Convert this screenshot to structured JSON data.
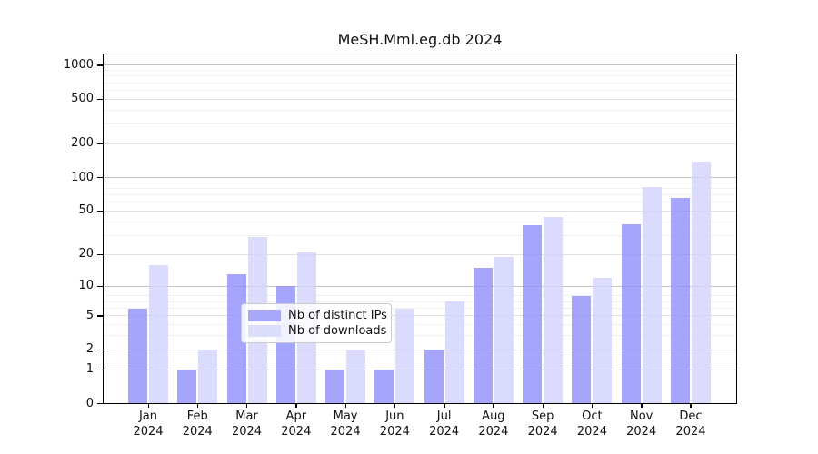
{
  "chart_data": {
    "type": "bar",
    "title": "MeSH.Mml.eg.db 2024",
    "xlabel": "",
    "ylabel": "",
    "x_sublabel": "2024",
    "categories": [
      "Jan",
      "Feb",
      "Mar",
      "Apr",
      "May",
      "Jun",
      "Jul",
      "Aug",
      "Sep",
      "Oct",
      "Nov",
      "Dec"
    ],
    "series": [
      {
        "name": "Nb of distinct IPs",
        "color": "rgba(145,145,250,0.82)",
        "solid_color": "#a8a8fa",
        "values": [
          6,
          1,
          13,
          10,
          1,
          1,
          2,
          15,
          37,
          8,
          38,
          66
        ]
      },
      {
        "name": "Nb of downloads",
        "color": "rgba(211,211,252,0.82)",
        "solid_color": "#dcdcfb",
        "values": [
          16,
          2,
          29,
          21,
          2,
          6,
          7,
          19,
          44,
          12,
          83,
          140
        ]
      }
    ],
    "y_axis": {
      "scale": "log10(1+x)",
      "ticks": [
        0,
        1,
        2,
        5,
        10,
        20,
        50,
        100,
        200,
        500,
        1000
      ],
      "ylim": [
        0,
        1250
      ],
      "grid_major": [
        1,
        10,
        100,
        1000
      ],
      "grid_minor_labeled": [
        2,
        5,
        20,
        50,
        200,
        500
      ],
      "grid_minor": [
        3,
        4,
        6,
        7,
        8,
        9,
        30,
        40,
        60,
        70,
        80,
        90,
        300,
        400,
        600,
        700,
        800,
        900
      ]
    },
    "legend_position": "inside-bottom-center",
    "colors": {
      "grid_major": "#c3c3c7",
      "grid_minor_labeled": "#e2e2e6",
      "grid_minor": "#f1f1f4",
      "axis": "#000000"
    }
  }
}
